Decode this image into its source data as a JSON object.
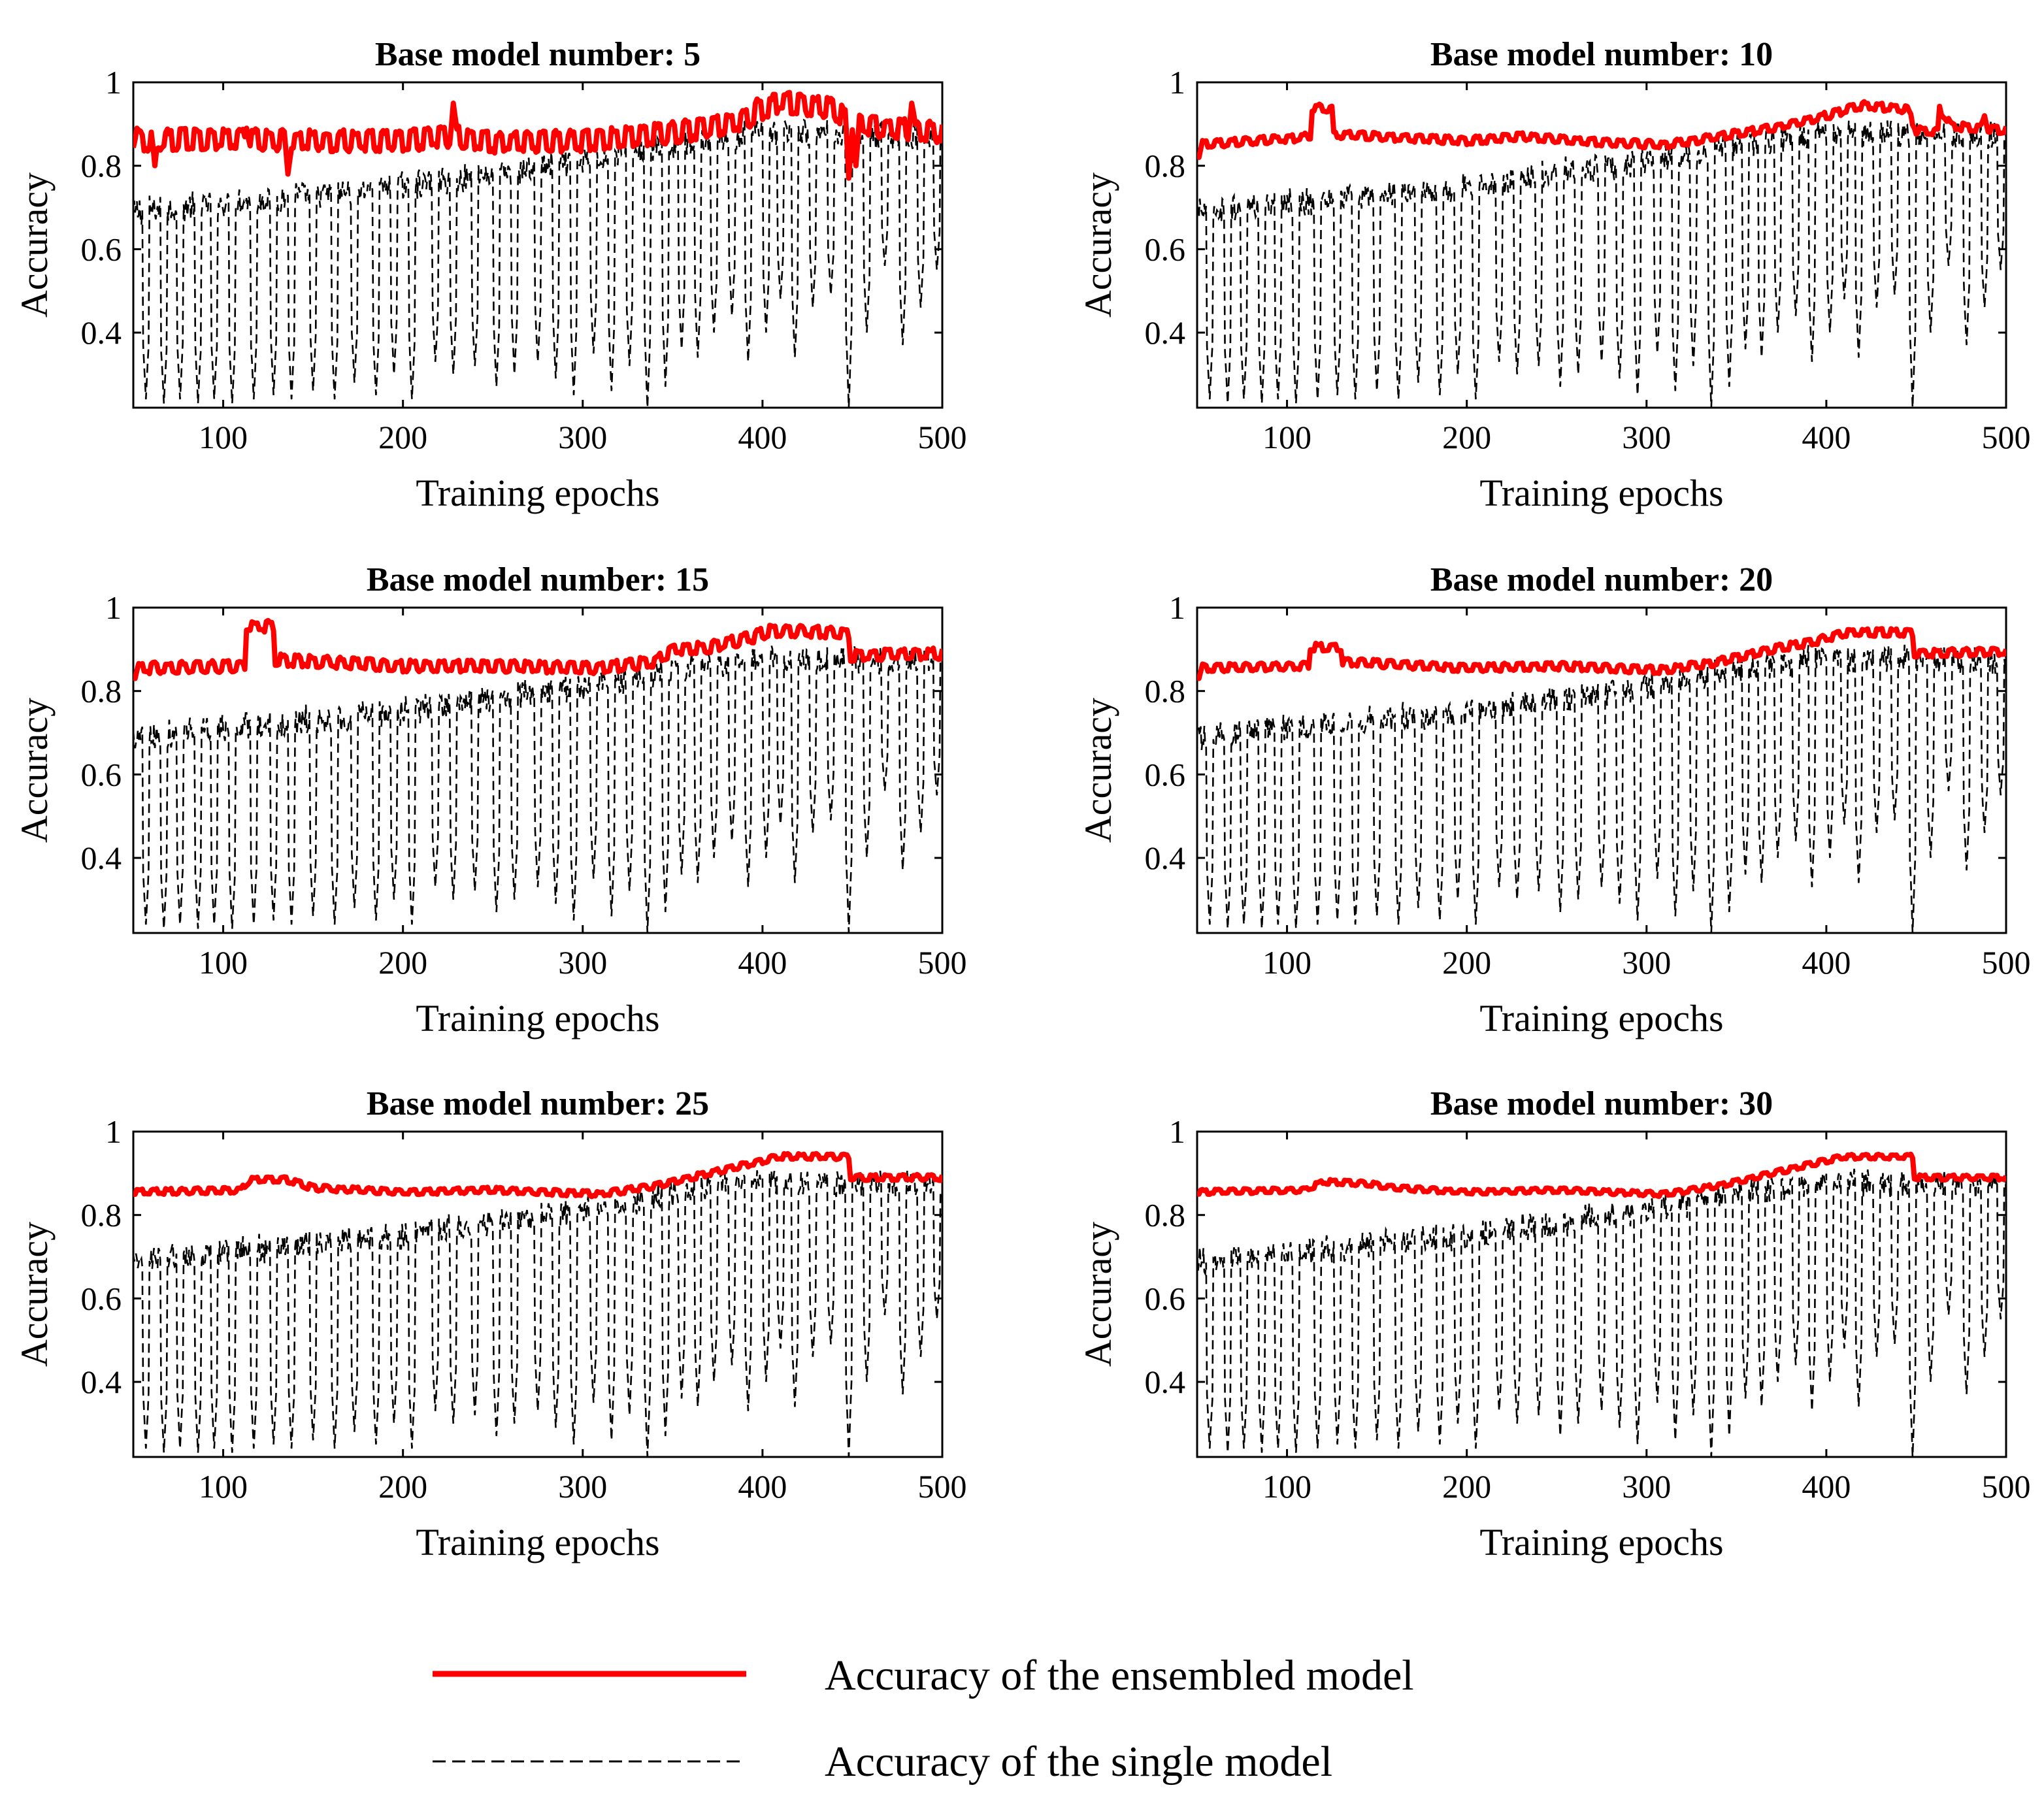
{
  "legend": {
    "ensembled_label": "Accuracy of the ensembled model",
    "single_label": "Accuracy of the single model"
  },
  "colors": {
    "ensembled": "#ff0000",
    "single": "#000000",
    "axes": "#000000"
  },
  "chart_data": [
    {
      "type": "line",
      "title": "Base model number: 5",
      "xlabel": "Training epochs",
      "ylabel": "Accuracy",
      "xlim": [
        50,
        500
      ],
      "ylim": [
        0.22,
        1.0
      ],
      "xticks": [
        "100",
        "200",
        "300",
        "400",
        "500"
      ],
      "yticks": [
        "0.4",
        "0.6",
        "0.8",
        "1"
      ],
      "ensemble_profile": [
        [
          50,
          0.86
        ],
        [
          100,
          0.865
        ],
        [
          150,
          0.86
        ],
        [
          200,
          0.86
        ],
        [
          230,
          0.87
        ],
        [
          250,
          0.855
        ],
        [
          300,
          0.86
        ],
        [
          340,
          0.875
        ],
        [
          370,
          0.89
        ],
        [
          390,
          0.91
        ],
        [
          410,
          0.955
        ],
        [
          440,
          0.935
        ],
        [
          450,
          0.9
        ],
        [
          470,
          0.89
        ],
        [
          500,
          0.88
        ]
      ],
      "ensemble_spikes": [
        [
          52,
          0.89
        ],
        [
          62,
          0.8
        ],
        [
          113,
          0.89
        ],
        [
          136,
          0.78
        ],
        [
          228,
          0.95
        ],
        [
          397,
          0.96
        ],
        [
          413,
          0.97
        ],
        [
          448,
          0.77
        ],
        [
          452,
          0.8
        ],
        [
          483,
          0.95
        ]
      ],
      "ensemble_ripple": 0.022,
      "single_trend": [
        [
          50,
          0.7
        ],
        [
          100,
          0.72
        ],
        [
          200,
          0.76
        ],
        [
          300,
          0.82
        ],
        [
          350,
          0.86
        ],
        [
          400,
          0.89
        ],
        [
          450,
          0.885
        ],
        [
          500,
          0.88
        ]
      ],
      "series": [
        {
          "name": "Accuracy of the ensembled model",
          "style": "solid-red"
        },
        {
          "name": "Accuracy of the single model",
          "style": "dashed-black"
        }
      ]
    },
    {
      "type": "line",
      "title": "Base model number: 10",
      "xlabel": "Training epochs",
      "ylabel": "Accuracy",
      "xlim": [
        50,
        500
      ],
      "ylim": [
        0.22,
        1.0
      ],
      "xticks": [
        "100",
        "200",
        "300",
        "400",
        "500"
      ],
      "yticks": [
        "0.4",
        "0.6",
        "0.8",
        "1"
      ],
      "ensemble_profile": [
        [
          50,
          0.85
        ],
        [
          100,
          0.865
        ],
        [
          113,
          0.87
        ],
        [
          114,
          0.94
        ],
        [
          125,
          0.935
        ],
        [
          126,
          0.875
        ],
        [
          200,
          0.86
        ],
        [
          230,
          0.87
        ],
        [
          260,
          0.86
        ],
        [
          310,
          0.85
        ],
        [
          340,
          0.87
        ],
        [
          370,
          0.89
        ],
        [
          400,
          0.92
        ],
        [
          420,
          0.945
        ],
        [
          445,
          0.935
        ],
        [
          450,
          0.885
        ],
        [
          462,
          0.88
        ],
        [
          463,
          0.935
        ],
        [
          470,
          0.895
        ],
        [
          500,
          0.885
        ]
      ],
      "ensemble_spikes": [
        [
          51,
          0.82
        ],
        [
          488,
          0.92
        ]
      ],
      "ensemble_ripple": 0.008,
      "single_trend": [
        [
          50,
          0.7
        ],
        [
          100,
          0.72
        ],
        [
          200,
          0.76
        ],
        [
          300,
          0.82
        ],
        [
          350,
          0.86
        ],
        [
          400,
          0.89
        ],
        [
          450,
          0.885
        ],
        [
          500,
          0.88
        ]
      ],
      "series": [
        {
          "name": "Accuracy of the ensembled model",
          "style": "solid-red"
        },
        {
          "name": "Accuracy of the single model",
          "style": "dashed-black"
        }
      ]
    },
    {
      "type": "line",
      "title": "Base model number: 15",
      "xlabel": "Training epochs",
      "ylabel": "Accuracy",
      "xlim": [
        50,
        500
      ],
      "ylim": [
        0.22,
        1.0
      ],
      "xticks": [
        "100",
        "200",
        "300",
        "400",
        "500"
      ],
      "yticks": [
        "0.4",
        "0.6",
        "0.8",
        "1"
      ],
      "ensemble_profile": [
        [
          50,
          0.855
        ],
        [
          112,
          0.86
        ],
        [
          113,
          0.955
        ],
        [
          128,
          0.955
        ],
        [
          129,
          0.875
        ],
        [
          200,
          0.86
        ],
        [
          250,
          0.86
        ],
        [
          310,
          0.855
        ],
        [
          340,
          0.87
        ],
        [
          350,
          0.9
        ],
        [
          370,
          0.905
        ],
        [
          395,
          0.93
        ],
        [
          405,
          0.945
        ],
        [
          440,
          0.94
        ],
        [
          448,
          0.935
        ],
        [
          449,
          0.885
        ],
        [
          500,
          0.89
        ]
      ],
      "ensemble_spikes": [
        [
          51,
          0.83
        ]
      ],
      "ensemble_ripple": 0.012,
      "single_trend": [
        [
          50,
          0.7
        ],
        [
          100,
          0.72
        ],
        [
          200,
          0.76
        ],
        [
          300,
          0.82
        ],
        [
          350,
          0.86
        ],
        [
          400,
          0.89
        ],
        [
          450,
          0.885
        ],
        [
          500,
          0.88
        ]
      ],
      "series": [
        {
          "name": "Accuracy of the ensembled model",
          "style": "solid-red"
        },
        {
          "name": "Accuracy of the single model",
          "style": "dashed-black"
        }
      ]
    },
    {
      "type": "line",
      "title": "Base model number: 20",
      "xlabel": "Training epochs",
      "ylabel": "Accuracy",
      "xlim": [
        50,
        500
      ],
      "ylim": [
        0.22,
        1.0
      ],
      "xticks": [
        "100",
        "200",
        "300",
        "400",
        "500"
      ],
      "yticks": [
        "0.4",
        "0.6",
        "0.8",
        "1"
      ],
      "ensemble_profile": [
        [
          50,
          0.855
        ],
        [
          112,
          0.86
        ],
        [
          113,
          0.905
        ],
        [
          130,
          0.905
        ],
        [
          131,
          0.87
        ],
        [
          200,
          0.855
        ],
        [
          250,
          0.86
        ],
        [
          310,
          0.85
        ],
        [
          340,
          0.87
        ],
        [
          370,
          0.9
        ],
        [
          395,
          0.92
        ],
        [
          410,
          0.94
        ],
        [
          445,
          0.94
        ],
        [
          448,
          0.94
        ],
        [
          449,
          0.89
        ],
        [
          500,
          0.895
        ]
      ],
      "ensemble_spikes": [
        [
          51,
          0.83
        ]
      ],
      "ensemble_ripple": 0.008,
      "single_trend": [
        [
          50,
          0.7
        ],
        [
          100,
          0.72
        ],
        [
          200,
          0.76
        ],
        [
          300,
          0.82
        ],
        [
          350,
          0.86
        ],
        [
          400,
          0.89
        ],
        [
          450,
          0.885
        ],
        [
          500,
          0.88
        ]
      ],
      "series": [
        {
          "name": "Accuracy of the ensembled model",
          "style": "solid-red"
        },
        {
          "name": "Accuracy of the single model",
          "style": "dashed-black"
        }
      ]
    },
    {
      "type": "line",
      "title": "Base model number: 25",
      "xlabel": "Training epochs",
      "ylabel": "Accuracy",
      "xlim": [
        50,
        500
      ],
      "ylim": [
        0.22,
        1.0
      ],
      "xticks": [
        "100",
        "200",
        "300",
        "400",
        "500"
      ],
      "yticks": [
        "0.4",
        "0.6",
        "0.8",
        "1"
      ],
      "ensemble_profile": [
        [
          50,
          0.855
        ],
        [
          110,
          0.86
        ],
        [
          115,
          0.885
        ],
        [
          135,
          0.885
        ],
        [
          150,
          0.865
        ],
        [
          200,
          0.855
        ],
        [
          250,
          0.86
        ],
        [
          310,
          0.85
        ],
        [
          340,
          0.87
        ],
        [
          370,
          0.9
        ],
        [
          395,
          0.925
        ],
        [
          410,
          0.94
        ],
        [
          445,
          0.94
        ],
        [
          448,
          0.94
        ],
        [
          449,
          0.89
        ],
        [
          500,
          0.89
        ]
      ],
      "ensemble_spikes": [],
      "ensemble_ripple": 0.006,
      "single_trend": [
        [
          50,
          0.7
        ],
        [
          100,
          0.72
        ],
        [
          200,
          0.76
        ],
        [
          300,
          0.82
        ],
        [
          350,
          0.86
        ],
        [
          400,
          0.89
        ],
        [
          450,
          0.885
        ],
        [
          500,
          0.88
        ]
      ],
      "series": [
        {
          "name": "Accuracy of the ensembled model",
          "style": "solid-red"
        },
        {
          "name": "Accuracy of the single model",
          "style": "dashed-black"
        }
      ]
    },
    {
      "type": "line",
      "title": "Base model number: 30",
      "xlabel": "Training epochs",
      "ylabel": "Accuracy",
      "xlim": [
        50,
        500
      ],
      "ylim": [
        0.22,
        1.0
      ],
      "xticks": [
        "100",
        "200",
        "300",
        "400",
        "500"
      ],
      "yticks": [
        "0.4",
        "0.6",
        "0.8",
        "1"
      ],
      "ensemble_profile": [
        [
          50,
          0.855
        ],
        [
          110,
          0.86
        ],
        [
          120,
          0.88
        ],
        [
          145,
          0.875
        ],
        [
          160,
          0.865
        ],
        [
          200,
          0.855
        ],
        [
          250,
          0.86
        ],
        [
          310,
          0.85
        ],
        [
          340,
          0.87
        ],
        [
          370,
          0.9
        ],
        [
          395,
          0.925
        ],
        [
          410,
          0.94
        ],
        [
          445,
          0.94
        ],
        [
          448,
          0.94
        ],
        [
          449,
          0.89
        ],
        [
          500,
          0.89
        ]
      ],
      "ensemble_spikes": [],
      "ensemble_ripple": 0.005,
      "single_trend": [
        [
          50,
          0.7
        ],
        [
          100,
          0.72
        ],
        [
          200,
          0.76
        ],
        [
          300,
          0.82
        ],
        [
          350,
          0.86
        ],
        [
          400,
          0.89
        ],
        [
          450,
          0.885
        ],
        [
          500,
          0.88
        ]
      ],
      "series": [
        {
          "name": "Accuracy of the ensembled model",
          "style": "solid-red"
        },
        {
          "name": "Accuracy of the single model",
          "style": "dashed-black"
        }
      ]
    }
  ],
  "single_model_dips": [
    [
      57,
      0.24
    ],
    [
      67,
      0.23
    ],
    [
      76,
      0.24
    ],
    [
      86,
      0.23
    ],
    [
      95,
      0.24
    ],
    [
      105,
      0.23
    ],
    [
      117,
      0.24
    ],
    [
      128,
      0.25
    ],
    [
      138,
      0.24
    ],
    [
      150,
      0.26
    ],
    [
      162,
      0.24
    ],
    [
      173,
      0.28
    ],
    [
      185,
      0.25
    ],
    [
      195,
      0.3
    ],
    [
      205,
      0.24
    ],
    [
      218,
      0.33
    ],
    [
      228,
      0.3
    ],
    [
      240,
      0.32
    ],
    [
      252,
      0.27
    ],
    [
      262,
      0.3
    ],
    [
      275,
      0.33
    ],
    [
      285,
      0.29
    ],
    [
      295,
      0.25
    ],
    [
      306,
      0.35
    ],
    [
      316,
      0.26
    ],
    [
      326,
      0.32
    ],
    [
      336,
      0.22
    ],
    [
      346,
      0.27
    ],
    [
      355,
      0.36
    ],
    [
      364,
      0.34
    ],
    [
      373,
      0.4
    ],
    [
      383,
      0.44
    ],
    [
      392,
      0.33
    ],
    [
      402,
      0.4
    ],
    [
      410,
      0.48
    ],
    [
      418,
      0.34
    ],
    [
      428,
      0.46
    ],
    [
      438,
      0.49
    ],
    [
      448,
      0.22
    ],
    [
      458,
      0.4
    ],
    [
      468,
      0.56
    ],
    [
      478,
      0.37
    ],
    [
      488,
      0.46
    ],
    [
      497,
      0.55
    ]
  ]
}
